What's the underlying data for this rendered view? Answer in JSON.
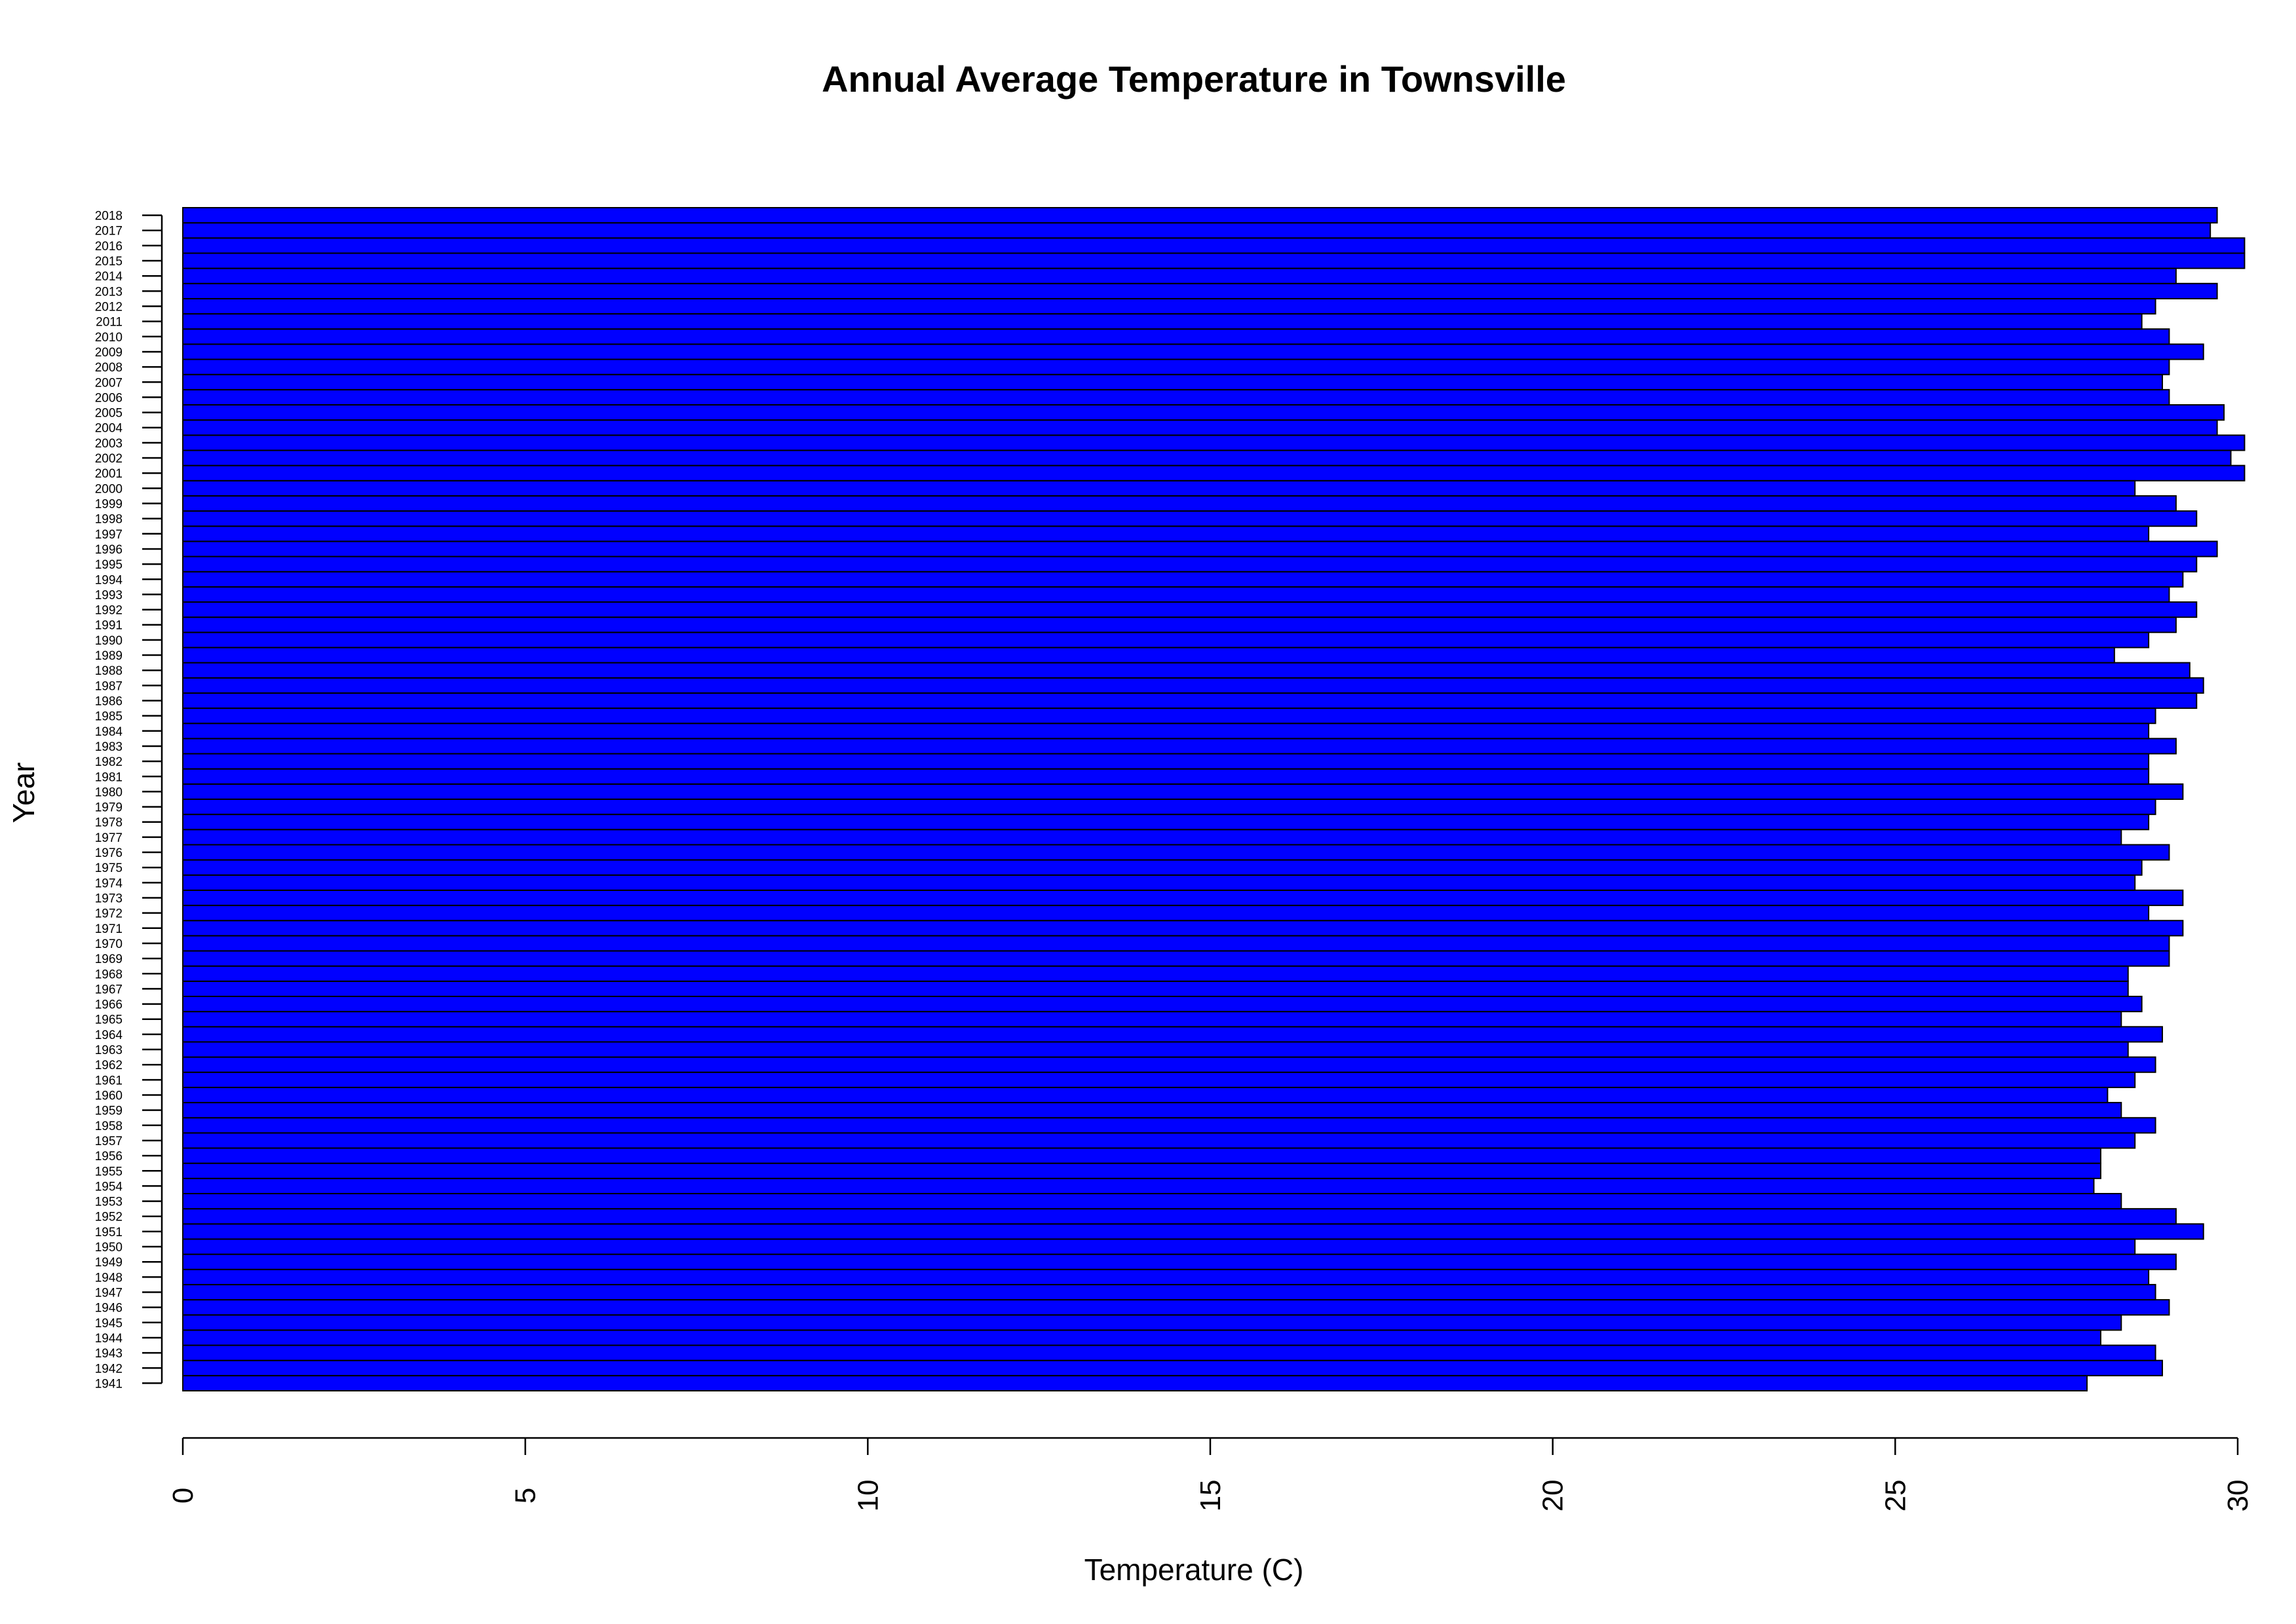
{
  "colors": {
    "bar_fill": "#0000ff",
    "bar_stroke": "#000000",
    "background": "#ffffff"
  },
  "chart_data": {
    "type": "bar",
    "orientation": "horizontal",
    "title": "Annual Average Temperature in Townsville",
    "xlabel": "Temperature (C)",
    "ylabel": "Year",
    "xlim": [
      0,
      30
    ],
    "x_ticks": [
      0,
      5,
      10,
      15,
      20,
      25,
      30
    ],
    "x_tick_labels": [
      "0",
      "5",
      "10",
      "15",
      "20",
      "25",
      "30"
    ],
    "grid": false,
    "legend": "none",
    "categories": [
      "1941",
      "1942",
      "1943",
      "1944",
      "1945",
      "1946",
      "1947",
      "1948",
      "1949",
      "1950",
      "1951",
      "1952",
      "1953",
      "1954",
      "1955",
      "1956",
      "1957",
      "1958",
      "1959",
      "1960",
      "1961",
      "1962",
      "1963",
      "1964",
      "1965",
      "1966",
      "1967",
      "1968",
      "1969",
      "1970",
      "1971",
      "1972",
      "1973",
      "1974",
      "1975",
      "1976",
      "1977",
      "1978",
      "1979",
      "1980",
      "1981",
      "1982",
      "1983",
      "1984",
      "1985",
      "1986",
      "1987",
      "1988",
      "1989",
      "1990",
      "1991",
      "1992",
      "1993",
      "1994",
      "1995",
      "1996",
      "1997",
      "1998",
      "1999",
      "2000",
      "2001",
      "2002",
      "2003",
      "2004",
      "2005",
      "2006",
      "2007",
      "2008",
      "2009",
      "2010",
      "2011",
      "2012",
      "2013",
      "2014",
      "2015",
      "2016",
      "2017",
      "2018"
    ],
    "values": [
      27.8,
      28.9,
      28.8,
      28.0,
      28.3,
      29.0,
      28.8,
      28.7,
      29.1,
      28.5,
      29.5,
      29.1,
      28.3,
      27.9,
      28.0,
      28.0,
      28.5,
      28.8,
      28.3,
      28.1,
      28.5,
      28.8,
      28.4,
      28.9,
      28.3,
      28.6,
      28.4,
      28.4,
      29.0,
      29.0,
      29.2,
      28.7,
      29.2,
      28.5,
      28.6,
      29.0,
      28.3,
      28.7,
      28.8,
      29.2,
      28.7,
      28.7,
      29.1,
      28.7,
      28.8,
      29.4,
      29.5,
      29.3,
      28.2,
      28.7,
      29.1,
      29.4,
      29.0,
      29.2,
      29.4,
      29.7,
      28.7,
      29.4,
      29.1,
      28.5,
      30.1,
      29.9,
      30.1,
      29.7,
      29.8,
      29.0,
      28.9,
      29.0,
      29.5,
      29.0,
      28.6,
      28.8,
      29.7,
      29.1,
      30.1,
      30.1,
      29.6,
      29.7
    ]
  }
}
